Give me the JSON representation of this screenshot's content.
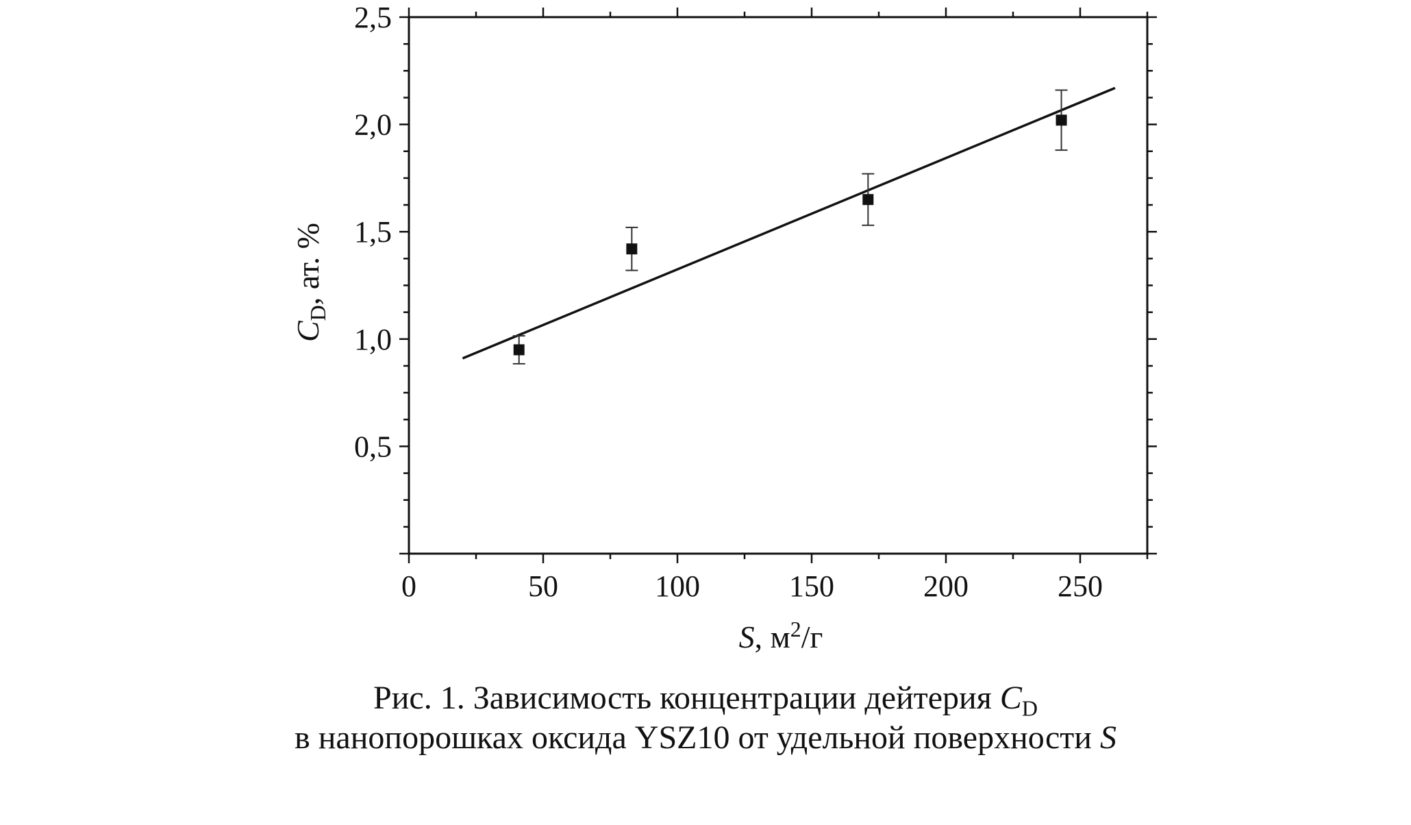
{
  "chart_data": {
    "type": "scatter",
    "xlabel": {
      "symbol": "S",
      "rest": ", м",
      "sup": "2",
      "tail": "/г"
    },
    "ylabel": {
      "symbol": "C",
      "sub": "D",
      "rest": ", ат. %"
    },
    "xlim": [
      0,
      275
    ],
    "ylim": [
      0,
      2.5
    ],
    "x_ticks": [
      {
        "value": 0,
        "label": "0"
      },
      {
        "value": 50,
        "label": "50"
      },
      {
        "value": 100,
        "label": "100"
      },
      {
        "value": 150,
        "label": "150"
      },
      {
        "value": 200,
        "label": "200"
      },
      {
        "value": 250,
        "label": "250"
      }
    ],
    "y_ticks": [
      {
        "value": 0.5,
        "label": "0,5"
      },
      {
        "value": 1.0,
        "label": "1,0"
      },
      {
        "value": 1.5,
        "label": "1,5"
      },
      {
        "value": 2.0,
        "label": "2,0"
      },
      {
        "value": 2.5,
        "label": "2,5"
      }
    ],
    "points": [
      {
        "x": 41,
        "y": 0.95,
        "err": 0.065
      },
      {
        "x": 83,
        "y": 1.42,
        "err": 0.1
      },
      {
        "x": 171,
        "y": 1.65,
        "err": 0.12
      },
      {
        "x": 243,
        "y": 2.02,
        "err": 0.14
      }
    ],
    "fit_line": {
      "x": [
        20,
        263
      ],
      "y": [
        0.91,
        2.17
      ]
    }
  },
  "caption": {
    "line1_text": "Рис. 1. Зависимость концентрации дейтерия ",
    "line1_symbol": "C",
    "line1_sub": "D",
    "line2_text": "в нанопорошках оксида YSZ10 от удельной поверхности ",
    "line2_symbol": "S"
  }
}
